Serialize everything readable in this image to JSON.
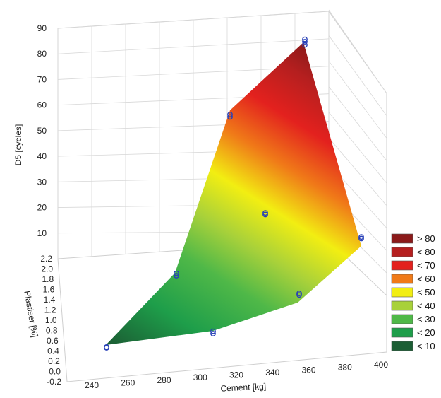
{
  "chart_data": {
    "type": "surface3d",
    "title": "",
    "xlabel": "Cement [kg]",
    "ylabel": "Plastiser [%]",
    "zlabel": "D5 [cycles]",
    "x_ticks": [
      "240",
      "260",
      "280",
      "300",
      "320",
      "340",
      "360",
      "380",
      "400"
    ],
    "y_ticks": [
      "-0.2",
      "0.0",
      "0.2",
      "0.4",
      "0.6",
      "0.8",
      "1.0",
      "1.2",
      "1.4",
      "1.6",
      "1.8",
      "2.0",
      "2.2"
    ],
    "z_ticks": [
      "10",
      "20",
      "30",
      "40",
      "50",
      "60",
      "70",
      "80",
      "90"
    ],
    "xlim": [
      240,
      400
    ],
    "ylim": [
      -0.2,
      2.2
    ],
    "zlim": [
      0,
      90
    ],
    "grid": true,
    "legend_position": "right",
    "legend": [
      {
        "label": "> 80",
        "color": "#8b1a1a"
      },
      {
        "label": "< 80",
        "color": "#b51f1f"
      },
      {
        "label": "< 70",
        "color": "#e3211e"
      },
      {
        "label": "< 60",
        "color": "#f07a18"
      },
      {
        "label": "< 50",
        "color": "#f2ee12"
      },
      {
        "label": "< 40",
        "color": "#a8d13a"
      },
      {
        "label": "< 30",
        "color": "#4fb848"
      },
      {
        "label": "< 20",
        "color": "#1e9e4a"
      },
      {
        "label": "< 10",
        "color": "#1b5e34"
      }
    ],
    "points": [
      {
        "cement": 250,
        "plastiser": 0.5,
        "d5": 0
      },
      {
        "cement": 250,
        "plastiser": 0.5,
        "d5": 1
      },
      {
        "cement": 300,
        "plastiser": 0.5,
        "d5": 0
      },
      {
        "cement": 300,
        "plastiser": 0.5,
        "d5": 3
      },
      {
        "cement": 350,
        "plastiser": 0.5,
        "d5": 6
      },
      {
        "cement": 350,
        "plastiser": 0.5,
        "d5": 8
      },
      {
        "cement": 400,
        "plastiser": 0.5,
        "d5": 13
      },
      {
        "cement": 400,
        "plastiser": 0.5,
        "d5": 15
      },
      {
        "cement": 250,
        "plastiser": 2.0,
        "d5": 0
      },
      {
        "cement": 250,
        "plastiser": 2.0,
        "d5": 3
      },
      {
        "cement": 300,
        "plastiser": 2.0,
        "d5": 13
      },
      {
        "cement": 300,
        "plastiser": 2.0,
        "d5": 15
      },
      {
        "cement": 350,
        "plastiser": 2.0,
        "d5": 47
      },
      {
        "cement": 350,
        "plastiser": 2.0,
        "d5": 50
      },
      {
        "cement": 400,
        "plastiser": 2.0,
        "d5": 79
      },
      {
        "cement": 400,
        "plastiser": 2.0,
        "d5": 83
      },
      {
        "cement": 400,
        "plastiser": 2.0,
        "d5": 86
      }
    ]
  }
}
